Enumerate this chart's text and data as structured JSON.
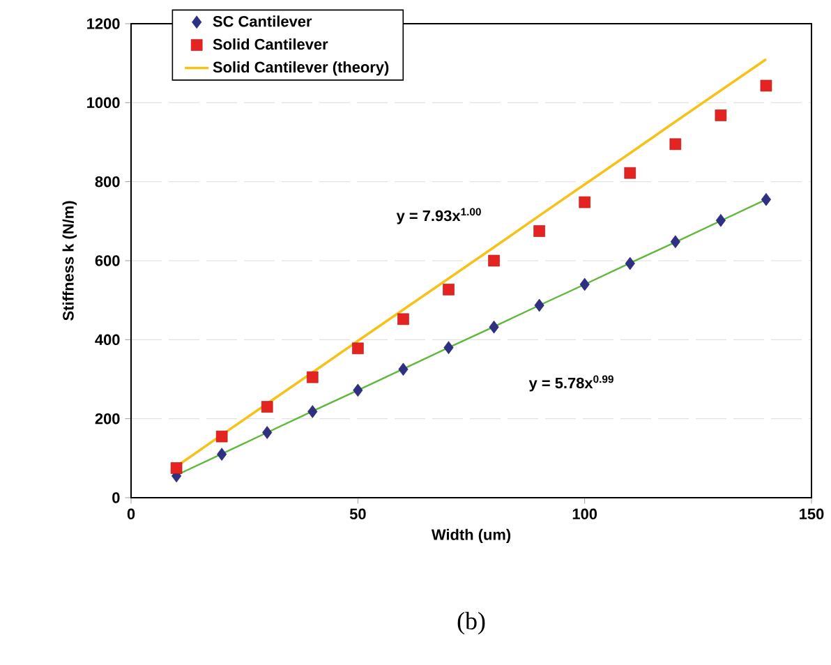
{
  "chart_data": {
    "type": "scatter",
    "xlabel": "Width (um)",
    "ylabel": "Stiffness k (N/m)",
    "x": [
      10,
      20,
      30,
      40,
      50,
      60,
      70,
      80,
      90,
      100,
      110,
      120,
      130,
      140
    ],
    "xlim": [
      0,
      150
    ],
    "xticks": [
      0,
      50,
      100,
      150
    ],
    "ylim": [
      0,
      1200
    ],
    "yticks": [
      0,
      200,
      400,
      600,
      800,
      1000,
      1200
    ],
    "grid": "y",
    "legend": "top left",
    "series": [
      {
        "name": "SC Cantilever",
        "color": "#2e3083",
        "marker": "diamond",
        "values": [
          55,
          110,
          165,
          218,
          272,
          325,
          380,
          432,
          487,
          540,
          593,
          648,
          702,
          755
        ]
      },
      {
        "name": "Solid Cantilever",
        "color": "#e52421",
        "marker": "square",
        "values": [
          75,
          155,
          230,
          305,
          378,
          452,
          527,
          600,
          675,
          748,
          822,
          895,
          968,
          1043
        ]
      },
      {
        "name": "Solid Cantilever (theory)",
        "type": "line",
        "color": "#f6c21a",
        "values": [
          79,
          159,
          238,
          317,
          397,
          476,
          555,
          634,
          714,
          793,
          872,
          952,
          1031,
          1110
        ]
      },
      {
        "type": "line",
        "color": "#5fb83a",
        "values": [
          57,
          111,
          165,
          219,
          272,
          326,
          380,
          433,
          487,
          540,
          594,
          647,
          701,
          755
        ]
      }
    ],
    "annotations": [
      "y = 7.93x$^{1.00}$",
      "y = 5.78x$^{0.99}$",
      "(b)"
    ]
  }
}
